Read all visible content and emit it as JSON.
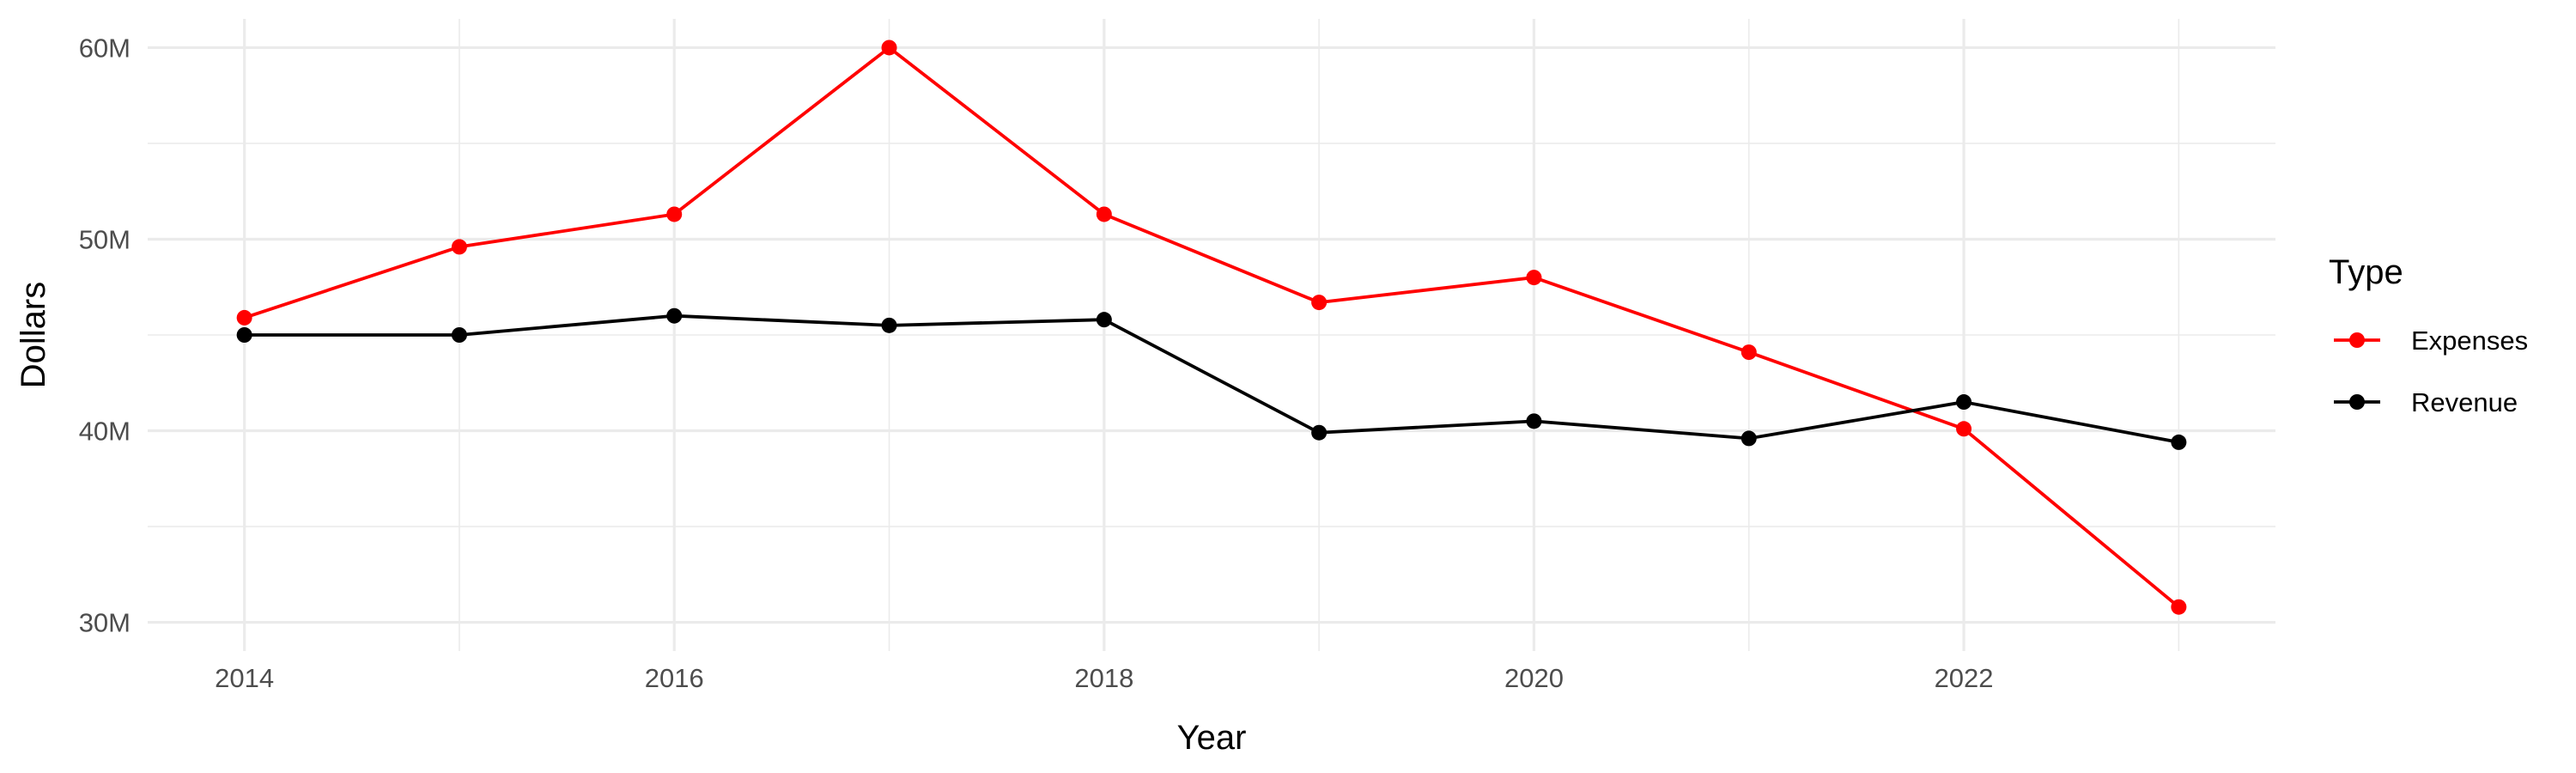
{
  "chart_data": {
    "type": "line",
    "title": "",
    "xlabel": "Year",
    "ylabel": "Dollars",
    "x": [
      2014,
      2015,
      2016,
      2017,
      2018,
      2019,
      2020,
      2021,
      2022,
      2023
    ],
    "xlim": [
      2013.55,
      2023.45
    ],
    "ylim": [
      30000000,
      60000000
    ],
    "x_ticks": [
      2014,
      2016,
      2018,
      2020,
      2022
    ],
    "x_tick_labels": [
      "2014",
      "2016",
      "2018",
      "2020",
      "2022"
    ],
    "y_ticks": [
      30000000,
      40000000,
      50000000,
      60000000
    ],
    "y_tick_labels": [
      "30M",
      "40M",
      "50M",
      "60M"
    ],
    "grid": true,
    "legend": {
      "title": "Type",
      "position": "right"
    },
    "series": [
      {
        "name": "Expenses",
        "color": "#ff0000",
        "values": [
          45900000,
          49600000,
          51300000,
          60000000,
          51300000,
          46700000,
          48000000,
          44100000,
          40100000,
          30800000
        ]
      },
      {
        "name": "Revenue",
        "color": "#000000",
        "values": [
          45000000,
          45000000,
          46000000,
          45500000,
          45800000,
          39900000,
          40500000,
          39600000,
          41500000,
          39400000
        ]
      }
    ]
  }
}
